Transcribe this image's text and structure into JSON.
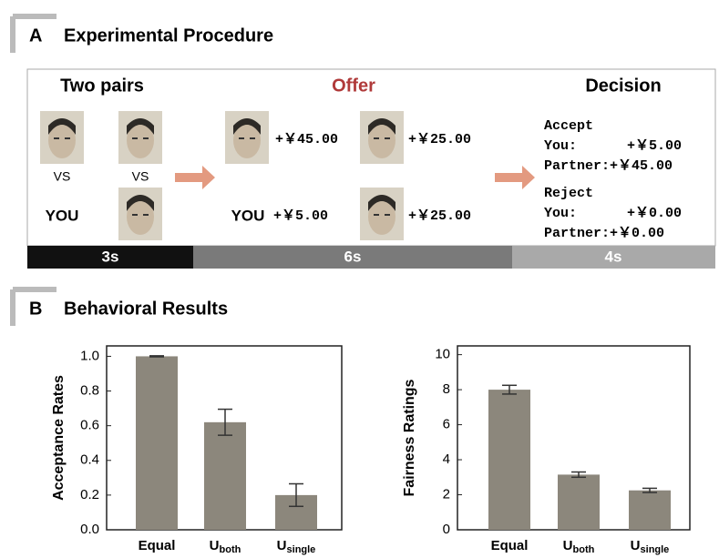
{
  "panel_a": {
    "label": "A",
    "title": "Experimental Procedure",
    "headings": [
      "Two pairs",
      "Offer",
      "Decision"
    ],
    "vs": [
      "VS",
      "VS"
    ],
    "you": [
      "YOU",
      "YOU"
    ],
    "offers": [
      "+￥45.00",
      "+￥25.00",
      "+￥5.00",
      "+￥25.00"
    ],
    "decision": {
      "accept": "Accept",
      "accept_you": "You:",
      "accept_you_amount": "+￥5.00",
      "accept_partner": "Partner:+￥45.00",
      "reject": "Reject",
      "reject_you": "You:",
      "reject_you_amount": "+￥0.00",
      "reject_partner": "Partner:+￥0.00"
    },
    "durations": [
      "3s",
      "6s",
      "4s"
    ]
  },
  "panel_b": {
    "label": "B",
    "title": "Behavioral Results"
  },
  "chart_data": [
    {
      "type": "bar",
      "ylabel": "Acceptance Rates",
      "categories": [
        "Equal",
        "Uboth",
        "Usingle"
      ],
      "values": [
        1.0,
        0.62,
        0.2
      ],
      "errors": [
        0.003,
        0.075,
        0.065
      ],
      "color": "#8c877c",
      "ylim": [
        0,
        1.06
      ],
      "yticks": [
        {
          "value": 0,
          "label": "0.0"
        },
        0.2,
        0.4,
        0.6,
        0.8,
        {
          "value": 1,
          "label": "1.0"
        }
      ]
    },
    {
      "type": "bar",
      "ylabel": "Fairness Ratings",
      "categories": [
        "Equal",
        "Uboth",
        "Usingle"
      ],
      "values": [
        8.0,
        3.15,
        2.25
      ],
      "errors": [
        0.25,
        0.15,
        0.12
      ],
      "color": "#8c877c",
      "ylim": [
        0,
        10.5
      ],
      "yticks": [
        0,
        2,
        4,
        6,
        8,
        10
      ]
    }
  ]
}
